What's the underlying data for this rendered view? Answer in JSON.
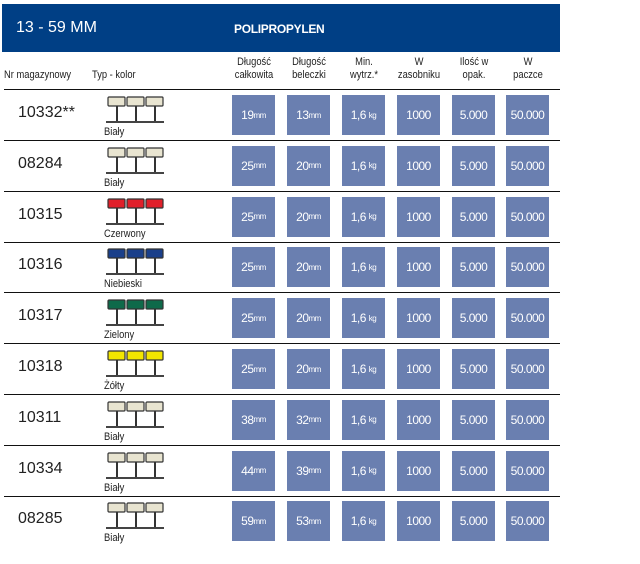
{
  "header": {
    "range": "13 - 59 MM",
    "material": "POLIPROPYLEN"
  },
  "columns": [
    "Nr magazynowy",
    "Typ - kolor",
    "Długość\ncałkowita",
    "Długość\nbeleczki",
    "Min.\nwytrz.*",
    "W\nzasobniku",
    "Ilość w\nopak.",
    "W\npaczce"
  ],
  "colors": {
    "header": "#003f85",
    "box": "#6a7fb0"
  },
  "rows": [
    {
      "nr": "10332**",
      "color": "Biały",
      "swatch": "#e8e4d0",
      "total": "19",
      "bar": "13",
      "str": "1,6",
      "tray": "1000",
      "pack": "5.000",
      "parcel": "50.000"
    },
    {
      "nr": "08284",
      "color": "Biały",
      "swatch": "#e8e4d0",
      "total": "25",
      "bar": "20",
      "str": "1,6",
      "tray": "1000",
      "pack": "5.000",
      "parcel": "50.000"
    },
    {
      "nr": "10315",
      "color": "Czerwony",
      "swatch": "#e0202a",
      "total": "25",
      "bar": "20",
      "str": "1,6",
      "tray": "1000",
      "pack": "5.000",
      "parcel": "50.000"
    },
    {
      "nr": "10316",
      "color": "Niebieski",
      "swatch": "#1a3f8a",
      "total": "25",
      "bar": "20",
      "str": "1,6",
      "tray": "1000",
      "pack": "5.000",
      "parcel": "50.000"
    },
    {
      "nr": "10317",
      "color": "Zielony",
      "swatch": "#0f6a4a",
      "total": "25",
      "bar": "20",
      "str": "1,6",
      "tray": "1000",
      "pack": "5.000",
      "parcel": "50.000"
    },
    {
      "nr": "10318",
      "color": "Żółty",
      "swatch": "#f2e600",
      "total": "25",
      "bar": "20",
      "str": "1,6",
      "tray": "1000",
      "pack": "5.000",
      "parcel": "50.000"
    },
    {
      "nr": "10311",
      "color": "Biały",
      "swatch": "#e8e4d0",
      "total": "38",
      "bar": "32",
      "str": "1,6",
      "tray": "1000",
      "pack": "5.000",
      "parcel": "50.000"
    },
    {
      "nr": "10334",
      "color": "Biały",
      "swatch": "#e8e4d0",
      "total": "44",
      "bar": "39",
      "str": "1,6",
      "tray": "1000",
      "pack": "5.000",
      "parcel": "50.000"
    },
    {
      "nr": "08285",
      "color": "Biały",
      "swatch": "#e8e4d0",
      "total": "59",
      "bar": "53",
      "str": "1,6",
      "tray": "1000",
      "pack": "5.000",
      "parcel": "50.000"
    }
  ],
  "units": {
    "mm": "mm",
    "kg": "kg"
  }
}
